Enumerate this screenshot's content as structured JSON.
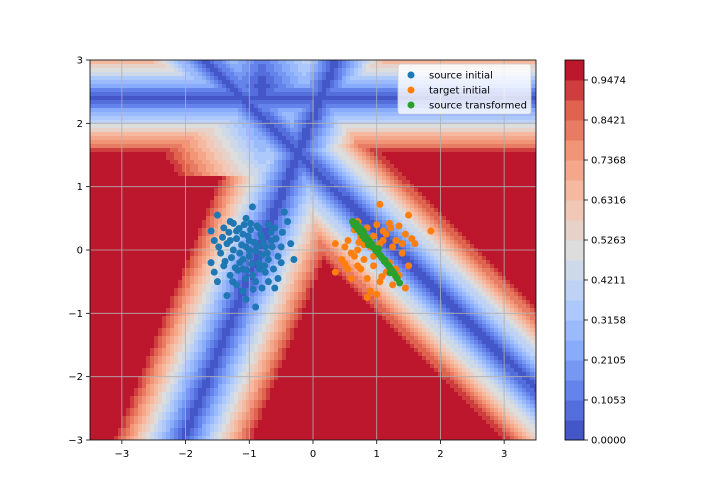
{
  "chart_data": {
    "type": "scatter",
    "title": "",
    "xlabel": "",
    "ylabel": "",
    "xlim": [
      -3.5,
      3.5
    ],
    "ylim": [
      -3,
      3
    ],
    "grid": true,
    "legend_location": "upper right",
    "x_ticks": [
      "−3",
      "−2",
      "−1",
      "0",
      "1",
      "2",
      "3"
    ],
    "y_ticks": [
      "−3",
      "−2",
      "−1",
      "0",
      "1",
      "2",
      "3"
    ],
    "background": {
      "type": "filled-contour",
      "colormap": "coolwarm",
      "levels": [
        0.0,
        0.0526,
        0.1053,
        0.1579,
        0.2105,
        0.2632,
        0.3158,
        0.3684,
        0.4211,
        0.4737,
        0.5263,
        0.5789,
        0.6316,
        0.6842,
        0.7368,
        0.7895,
        0.8421,
        0.8947,
        0.9474,
        1.0
      ],
      "colorbar_labels": [
        "0.0000",
        "0.1053",
        "0.2105",
        "0.3158",
        "0.4211",
        "0.5263",
        "0.6316",
        "0.7368",
        "0.8421",
        "0.9474"
      ]
    },
    "series": [
      {
        "name": "source initial",
        "color": "#1f77b4",
        "points": [
          [
            -1.5,
            0.55
          ],
          [
            -1.3,
            0.45
          ],
          [
            -1.05,
            0.5
          ],
          [
            -0.95,
            0.68
          ],
          [
            -0.7,
            0.4
          ],
          [
            -0.45,
            0.6
          ],
          [
            -0.4,
            0.45
          ],
          [
            -1.6,
            0.3
          ],
          [
            -1.4,
            0.35
          ],
          [
            -1.2,
            0.3
          ],
          [
            -1.1,
            0.25
          ],
          [
            -0.85,
            0.35
          ],
          [
            -0.6,
            0.35
          ],
          [
            -0.35,
            0.1
          ],
          [
            -1.55,
            0.15
          ],
          [
            -1.35,
            0.1
          ],
          [
            -1.2,
            0.18
          ],
          [
            -1.0,
            0.15
          ],
          [
            -0.8,
            0.2
          ],
          [
            -0.65,
            0.15
          ],
          [
            -0.5,
            0.05
          ],
          [
            -1.45,
            -0.05
          ],
          [
            -1.25,
            0.0
          ],
          [
            -1.05,
            0.05
          ],
          [
            -0.9,
            -0.02
          ],
          [
            -0.75,
            0.05
          ],
          [
            -0.55,
            -0.1
          ],
          [
            -0.3,
            -0.15
          ],
          [
            -1.6,
            -0.2
          ],
          [
            -1.4,
            -0.25
          ],
          [
            -1.15,
            -0.2
          ],
          [
            -1.0,
            -0.1
          ],
          [
            -0.85,
            -0.2
          ],
          [
            -0.7,
            -0.15
          ],
          [
            -0.5,
            -0.2
          ],
          [
            -1.55,
            -0.35
          ],
          [
            -1.3,
            -0.4
          ],
          [
            -1.1,
            -0.3
          ],
          [
            -0.95,
            -0.4
          ],
          [
            -0.75,
            -0.35
          ],
          [
            -0.55,
            -0.45
          ],
          [
            -1.5,
            -0.5
          ],
          [
            -1.2,
            -0.55
          ],
          [
            -0.9,
            -0.5
          ],
          [
            -0.8,
            -0.6
          ],
          [
            -1.35,
            -0.72
          ],
          [
            -1.1,
            -0.65
          ],
          [
            -1.05,
            -0.78
          ],
          [
            -0.9,
            -0.9
          ],
          [
            -1.25,
            0.42
          ],
          [
            -0.98,
            0.32
          ],
          [
            -0.78,
            0.1
          ],
          [
            -1.15,
            -0.05
          ],
          [
            -0.62,
            -0.3
          ],
          [
            -1.42,
            0.2
          ],
          [
            -0.88,
            0.05
          ],
          [
            -1.08,
            0.4
          ],
          [
            -0.72,
            -0.05
          ],
          [
            -1.28,
            -0.12
          ],
          [
            -0.96,
            -0.22
          ],
          [
            -1.18,
            -0.32
          ],
          [
            -0.66,
            0.28
          ],
          [
            -0.84,
            -0.3
          ],
          [
            -1.02,
            0.22
          ],
          [
            -1.32,
            0.28
          ],
          [
            -0.58,
            0.18
          ],
          [
            -0.92,
            0.12
          ],
          [
            -1.12,
            0.08
          ],
          [
            -0.8,
            -0.08
          ],
          [
            -1.38,
            -0.18
          ],
          [
            -1.06,
            -0.45
          ],
          [
            -0.7,
            -0.5
          ],
          [
            -1.22,
            -0.28
          ],
          [
            -0.88,
            0.38
          ],
          [
            -0.48,
            0.28
          ],
          [
            -1.48,
            0.05
          ],
          [
            -1.0,
            0.0
          ],
          [
            -0.82,
            0.25
          ],
          [
            -1.16,
            0.34
          ],
          [
            -0.64,
            0.05
          ],
          [
            -1.26,
            -0.5
          ],
          [
            -0.94,
            -0.62
          ],
          [
            -0.76,
            -0.25
          ],
          [
            -1.1,
            -0.15
          ],
          [
            -1.3,
            0.15
          ],
          [
            -0.6,
            -0.6
          ],
          [
            -0.98,
            0.42
          ],
          [
            -1.04,
            -0.32
          ]
        ]
      },
      {
        "name": "target initial",
        "color": "#ff7f0e",
        "points": [
          [
            1.05,
            0.72
          ],
          [
            1.5,
            0.55
          ],
          [
            1.85,
            0.3
          ],
          [
            0.7,
            0.45
          ],
          [
            0.85,
            0.35
          ],
          [
            1.0,
            0.4
          ],
          [
            1.2,
            0.42
          ],
          [
            1.35,
            0.38
          ],
          [
            1.45,
            0.25
          ],
          [
            0.55,
            0.15
          ],
          [
            0.75,
            0.2
          ],
          [
            0.95,
            0.22
          ],
          [
            1.15,
            0.25
          ],
          [
            1.3,
            0.15
          ],
          [
            1.6,
            0.1
          ],
          [
            0.35,
            0.1
          ],
          [
            0.5,
            0.05
          ],
          [
            0.7,
            0.0
          ],
          [
            0.9,
            0.05
          ],
          [
            1.05,
            0.1
          ],
          [
            1.25,
            0.05
          ],
          [
            1.4,
            -0.05
          ],
          [
            0.45,
            -0.15
          ],
          [
            0.65,
            -0.1
          ],
          [
            0.8,
            -0.15
          ],
          [
            1.0,
            -0.05
          ],
          [
            1.2,
            -0.2
          ],
          [
            1.5,
            -0.25
          ],
          [
            0.35,
            -0.35
          ],
          [
            0.55,
            -0.3
          ],
          [
            0.75,
            -0.3
          ],
          [
            0.95,
            -0.25
          ],
          [
            1.15,
            -0.35
          ],
          [
            1.35,
            -0.4
          ],
          [
            0.6,
            -0.45
          ],
          [
            0.85,
            -0.45
          ],
          [
            1.05,
            -0.5
          ],
          [
            1.25,
            -0.55
          ],
          [
            1.45,
            -0.6
          ],
          [
            0.9,
            -0.65
          ],
          [
            1.0,
            -0.7
          ],
          [
            0.85,
            -0.75
          ],
          [
            0.65,
            0.32
          ],
          [
            1.1,
            0.3
          ],
          [
            1.4,
            0.1
          ],
          [
            0.6,
            -0.05
          ],
          [
            0.95,
            -0.1
          ],
          [
            1.3,
            -0.3
          ],
          [
            0.7,
            -0.25
          ],
          [
            1.1,
            0.15
          ],
          [
            0.8,
            0.08
          ],
          [
            1.22,
            0.35
          ],
          [
            0.5,
            -0.22
          ],
          [
            1.08,
            -0.42
          ],
          [
            1.55,
            0.18
          ],
          [
            0.72,
            0.12
          ]
        ]
      },
      {
        "name": "source transformed",
        "color": "#2ca02c",
        "points": [
          [
            0.62,
            0.45
          ],
          [
            0.66,
            0.38
          ],
          [
            0.7,
            0.33
          ],
          [
            0.74,
            0.28
          ],
          [
            0.78,
            0.22
          ],
          [
            0.82,
            0.17
          ],
          [
            0.86,
            0.13
          ],
          [
            0.9,
            0.09
          ],
          [
            0.94,
            0.05
          ],
          [
            0.98,
            0.0
          ],
          [
            1.02,
            -0.04
          ],
          [
            1.06,
            -0.09
          ],
          [
            1.1,
            -0.14
          ],
          [
            1.14,
            -0.19
          ],
          [
            1.18,
            -0.24
          ],
          [
            1.22,
            -0.3
          ],
          [
            1.26,
            -0.35
          ],
          [
            1.3,
            -0.42
          ],
          [
            1.36,
            -0.52
          ],
          [
            0.68,
            0.42
          ],
          [
            0.72,
            0.36
          ],
          [
            0.76,
            0.3
          ],
          [
            0.8,
            0.25
          ],
          [
            0.84,
            0.2
          ],
          [
            0.88,
            0.15
          ],
          [
            0.92,
            0.1
          ],
          [
            0.96,
            0.04
          ],
          [
            1.0,
            -0.02
          ],
          [
            1.04,
            -0.07
          ],
          [
            1.08,
            -0.12
          ],
          [
            1.12,
            -0.18
          ],
          [
            1.16,
            -0.22
          ],
          [
            1.2,
            -0.27
          ],
          [
            1.24,
            -0.33
          ],
          [
            1.28,
            -0.38
          ],
          [
            1.32,
            -0.45
          ],
          [
            0.64,
            0.4
          ],
          [
            0.87,
            0.08
          ],
          [
            1.13,
            -0.16
          ],
          [
            0.79,
            0.3
          ],
          [
            1.03,
            0.02
          ],
          [
            1.21,
            -0.36
          ]
        ]
      }
    ]
  }
}
